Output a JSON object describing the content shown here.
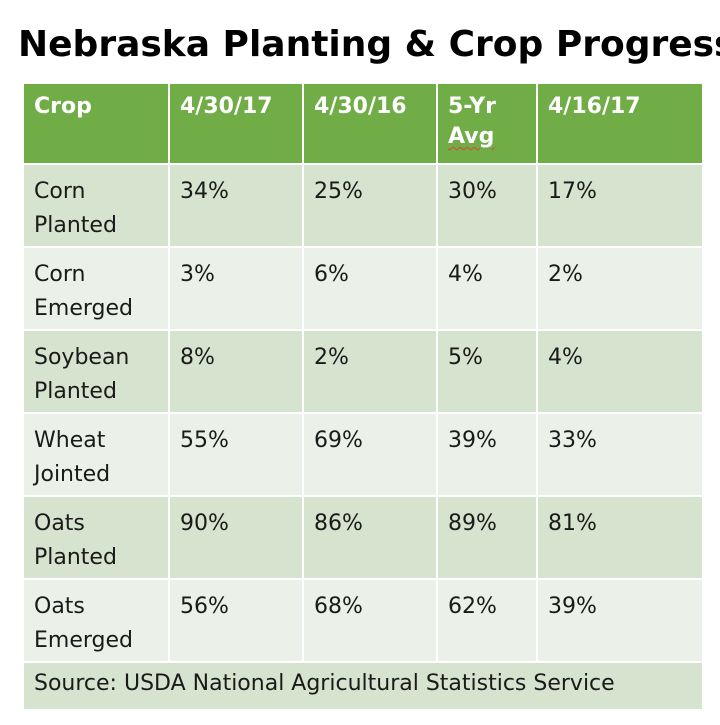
{
  "title": "Nebraska Planting & Crop Progress",
  "colors": {
    "header_bg": "#70ad47",
    "row_dark": "#d5e3cf",
    "row_light": "#ebf1e9"
  },
  "table": {
    "headers": [
      "Crop",
      "4/30/17",
      "4/30/16",
      "5-Yr",
      "Avg",
      "4/16/17"
    ],
    "rows": [
      {
        "crop": [
          "Corn",
          "Planted"
        ],
        "values": [
          "34%",
          "25%",
          "30%",
          "17%"
        ]
      },
      {
        "crop": [
          "Corn",
          "Emerged"
        ],
        "values": [
          "3%",
          "6%",
          "4%",
          "2%"
        ]
      },
      {
        "crop": [
          "Soybean",
          "Planted"
        ],
        "values": [
          "8%",
          "2%",
          "5%",
          "4%"
        ]
      },
      {
        "crop": [
          "Wheat",
          "Jointed"
        ],
        "values": [
          "55%",
          "69%",
          "39%",
          "33%"
        ]
      },
      {
        "crop": [
          "Oats",
          "Planted"
        ],
        "values": [
          "90%",
          "86%",
          "89%",
          "81%"
        ]
      },
      {
        "crop": [
          "Oats",
          "Emerged"
        ],
        "values": [
          "56%",
          "68%",
          "62%",
          "39%"
        ]
      }
    ],
    "source": "Source: USDA National Agricultural Statistics Service"
  }
}
